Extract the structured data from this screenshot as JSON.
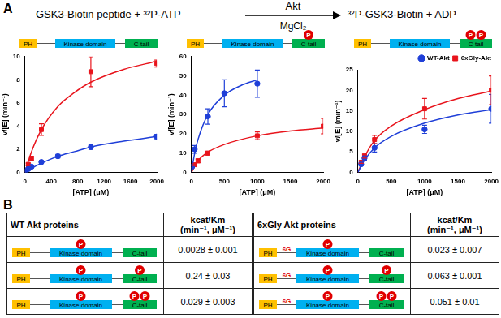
{
  "panel_labels": [
    "A",
    "B"
  ],
  "reaction": {
    "substrate": "GSK3-Biotin peptide + ³²P-ATP",
    "enzyme": "Akt",
    "cofactor": "MgCl₂",
    "product": "³²P-GSK3-Biotin + ADP"
  },
  "domains": {
    "ph": "PH",
    "kinase": "Kinase domain",
    "ctail": "C-tail",
    "phospho": "P",
    "linker": "6G"
  },
  "chart_data": [
    {
      "type": "scatter",
      "protein": {
        "linker": false,
        "kinase_p": 0,
        "ctail_p": 0
      },
      "x_label": "[ATP] (μM)",
      "y_label": "v/[E] (min⁻¹)",
      "xlim": [
        0,
        2000
      ],
      "xticks": [
        0,
        400,
        800,
        1200,
        1600,
        2000
      ],
      "ylim": [
        0,
        10
      ],
      "yticks": [
        0,
        2,
        4,
        6,
        8,
        10
      ],
      "grid": false,
      "legend": false,
      "series": [
        {
          "name": "WT-Akt",
          "color": "#1f3fd8",
          "marker": "circle",
          "x": [
            10,
            50,
            100,
            250,
            500,
            1000,
            2000
          ],
          "values": [
            0.1,
            0.3,
            0.5,
            0.9,
            1.4,
            2.2,
            3.1
          ],
          "errors": [
            0.05,
            0.1,
            0.1,
            0.1,
            0.15,
            0.2,
            0.2
          ],
          "fit": {
            "x": [
              0,
              100,
              250,
              500,
              750,
              1000,
              1500,
              2000
            ],
            "values": [
              0,
              0.35,
              0.8,
              1.4,
              1.8,
              2.2,
              2.7,
              3.1
            ]
          }
        },
        {
          "name": "6xGly-Akt",
          "color": "#e8141c",
          "marker": "square",
          "x": [
            50,
            100,
            250,
            1000,
            2000
          ],
          "values": [
            0.7,
            1.2,
            3.7,
            8.7,
            9.4
          ],
          "errors": [
            0.1,
            0.2,
            0.5,
            1.3,
            0.3
          ],
          "fit": {
            "x": [
              0,
              100,
              250,
              500,
              750,
              1000,
              1500,
              2000
            ],
            "values": [
              0,
              1.8,
              3.7,
              5.7,
              6.9,
              7.8,
              8.9,
              9.6
            ]
          }
        }
      ]
    },
    {
      "type": "scatter",
      "protein": {
        "linker": false,
        "kinase_p": 0,
        "ctail_p": 1
      },
      "x_label": "[ATP] (μM)",
      "y_label": "v/[E] (min⁻¹)",
      "xlim": [
        0,
        2000
      ],
      "xticks": [
        0,
        500,
        1000,
        1500,
        2000
      ],
      "ylim": [
        0,
        60
      ],
      "yticks": [
        0,
        10,
        20,
        30,
        40,
        50,
        60
      ],
      "grid": false,
      "legend": false,
      "series": [
        {
          "name": "WT-Akt",
          "color": "#1f3fd8",
          "marker": "circle",
          "x": [
            10,
            50,
            250,
            500,
            1000
          ],
          "values": [
            3,
            12,
            29,
            41,
            46
          ],
          "errors": [
            0.5,
            2,
            4,
            7,
            7
          ],
          "fit": {
            "x": [
              0,
              50,
              100,
              250,
              500,
              750,
              1000
            ],
            "values": [
              0,
              10,
              17,
              30,
              40,
              45,
              48
            ]
          }
        },
        {
          "name": "6xGly-Akt",
          "color": "#e8141c",
          "marker": "square",
          "x": [
            50,
            100,
            250,
            1000,
            2000
          ],
          "values": [
            4,
            6,
            10,
            19,
            24
          ],
          "errors": [
            0.5,
            1,
            1,
            2,
            4
          ],
          "fit": {
            "x": [
              0,
              100,
              250,
              500,
              1000,
              1500,
              2000
            ],
            "values": [
              0,
              6,
              10.5,
              14.5,
              19,
              21.5,
              23
            ]
          }
        }
      ]
    },
    {
      "type": "scatter",
      "protein": {
        "linker": false,
        "kinase_p": 0,
        "ctail_p": 2
      },
      "x_label": "[ATP] (μM)",
      "y_label": "v/[E] (min⁻¹)",
      "xlim": [
        0,
        2000
      ],
      "xticks": [
        0,
        500,
        1000,
        1500,
        2000
      ],
      "ylim": [
        0,
        25
      ],
      "yticks": [
        0,
        5,
        10,
        15,
        20,
        25
      ],
      "grid": false,
      "legend": "top",
      "series": [
        {
          "name": "WT-Akt",
          "color": "#1f3fd8",
          "marker": "circle",
          "x": [
            50,
            100,
            250,
            1000,
            2000
          ],
          "values": [
            2,
            3.5,
            6,
            10.5,
            15.5
          ],
          "errors": [
            0.3,
            0.5,
            1,
            1,
            3.5
          ],
          "fit": {
            "x": [
              0,
              100,
              250,
              500,
              1000,
              1500,
              2000
            ],
            "values": [
              0,
              3,
              6,
              8.8,
              12,
              14,
              15.3
            ]
          }
        },
        {
          "name": "6xGly-Akt",
          "color": "#e8141c",
          "marker": "square",
          "x": [
            50,
            100,
            250,
            1000,
            2000
          ],
          "values": [
            2.5,
            4,
            8,
            15.5,
            20
          ],
          "errors": [
            0.3,
            0.5,
            1,
            2.5,
            3.5
          ],
          "fit": {
            "x": [
              0,
              100,
              250,
              500,
              1000,
              1500,
              2000
            ],
            "values": [
              0,
              3.8,
              7.8,
              11.3,
              15.3,
              18,
              19.8
            ]
          }
        }
      ]
    }
  ],
  "tables": [
    {
      "header": [
        "WT Akt proteins",
        "kcat/Km",
        "(min⁻¹, μM⁻¹)"
      ],
      "rows": [
        {
          "protein": {
            "linker": false,
            "kinase_p": 1,
            "ctail_p": 0
          },
          "value": "0.0028 ± 0.001"
        },
        {
          "protein": {
            "linker": false,
            "kinase_p": 1,
            "ctail_p": 1
          },
          "value": "0.24 ± 0.03"
        },
        {
          "protein": {
            "linker": false,
            "kinase_p": 1,
            "ctail_p": 2
          },
          "value": "0.029 ± 0.003"
        }
      ]
    },
    {
      "header": [
        "6xGly Akt proteins",
        "kcat/Km",
        "(min⁻¹, μM⁻¹)"
      ],
      "rows": [
        {
          "protein": {
            "linker": true,
            "kinase_p": 1,
            "ctail_p": 0
          },
          "value": "0.023 ± 0.007"
        },
        {
          "protein": {
            "linker": true,
            "kinase_p": 1,
            "ctail_p": 1
          },
          "value": "0.063 ± 0.001"
        },
        {
          "protein": {
            "linker": true,
            "kinase_p": 1,
            "ctail_p": 2
          },
          "value": "0.051 ± 0.01"
        }
      ]
    }
  ]
}
